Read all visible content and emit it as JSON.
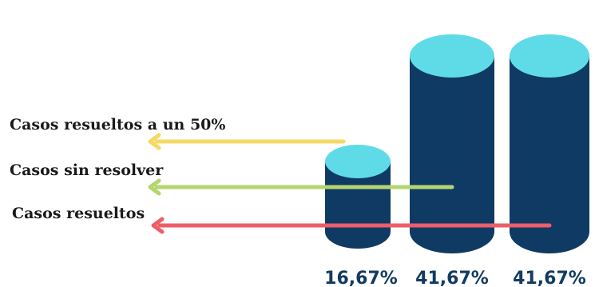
{
  "chart_data": {
    "type": "bar",
    "categories": [
      "Casos resueltos a un 50%",
      "Casos sin resolver",
      "Casos resueltos"
    ],
    "values": [
      16.67,
      41.67,
      41.67
    ],
    "value_labels": [
      "16,67%",
      "41,67%",
      "41,67%"
    ],
    "unit": "%",
    "ylim": [
      0,
      50
    ],
    "grid": false,
    "legend": "left",
    "title": "",
    "xlabel": "",
    "ylabel": ""
  },
  "colors": {
    "cylinder_body": "#0f3a63",
    "cylinder_top": "#5fdbe8",
    "text_dark": "#1a1a1a",
    "value_text": "#123b63",
    "arrows": [
      "#f5d966",
      "#b5d66e",
      "#ec5e68"
    ]
  }
}
